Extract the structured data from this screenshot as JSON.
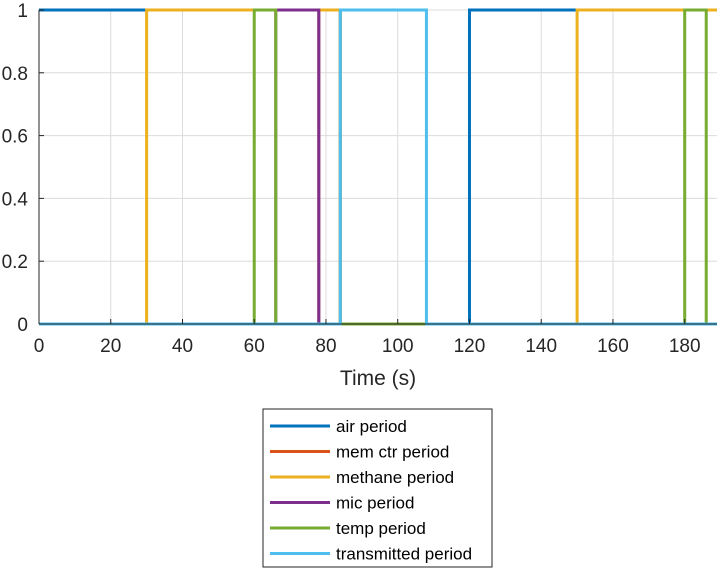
{
  "chart_data": {
    "type": "line",
    "title": "",
    "xlabel": "Time (s)",
    "ylabel": "",
    "xlim": [
      0,
      189
    ],
    "ylim": [
      0,
      1
    ],
    "xticks": [
      "0",
      "20",
      "40",
      "60",
      "80",
      "100",
      "120",
      "140",
      "160",
      "180"
    ],
    "yticks": [
      "0",
      "0.2",
      "0.4",
      "0.6",
      "0.8",
      "1"
    ],
    "grid": true,
    "legend_position": "below",
    "series": [
      {
        "name": "air period",
        "color": "#0072BD",
        "x": [
          0,
          84,
          84,
          120,
          120,
          189
        ],
        "y": [
          1,
          1,
          0,
          0,
          1,
          1
        ]
      },
      {
        "name": "mem ctr period",
        "color": "#D95319",
        "x": [
          0,
          78,
          78,
          84,
          84,
          189
        ],
        "y": [
          0,
          0,
          1,
          1,
          0,
          0
        ]
      },
      {
        "name": "methane period",
        "color": "#EDB120",
        "x": [
          0,
          30,
          30,
          84,
          84,
          150,
          150,
          189
        ],
        "y": [
          0,
          0,
          1,
          1,
          0,
          0,
          1,
          1
        ]
      },
      {
        "name": "mic period",
        "color": "#7E2F8E",
        "x": [
          0,
          66,
          66,
          78,
          78,
          189
        ],
        "y": [
          0,
          0,
          1,
          1,
          0,
          0
        ]
      },
      {
        "name": "temp period",
        "color": "#77AC30",
        "x": [
          0,
          60,
          60,
          66,
          66,
          84,
          84,
          108,
          108,
          180,
          180,
          186,
          186,
          189
        ],
        "y": [
          0,
          0,
          1,
          1,
          0,
          0,
          0,
          0,
          0,
          0,
          1,
          1,
          0,
          0
        ]
      },
      {
        "name": "transmitted period",
        "color": "#4DBEEE",
        "x": [
          0,
          84,
          84,
          108,
          108,
          189
        ],
        "y": [
          0,
          0,
          1,
          1,
          0,
          0
        ]
      }
    ]
  }
}
